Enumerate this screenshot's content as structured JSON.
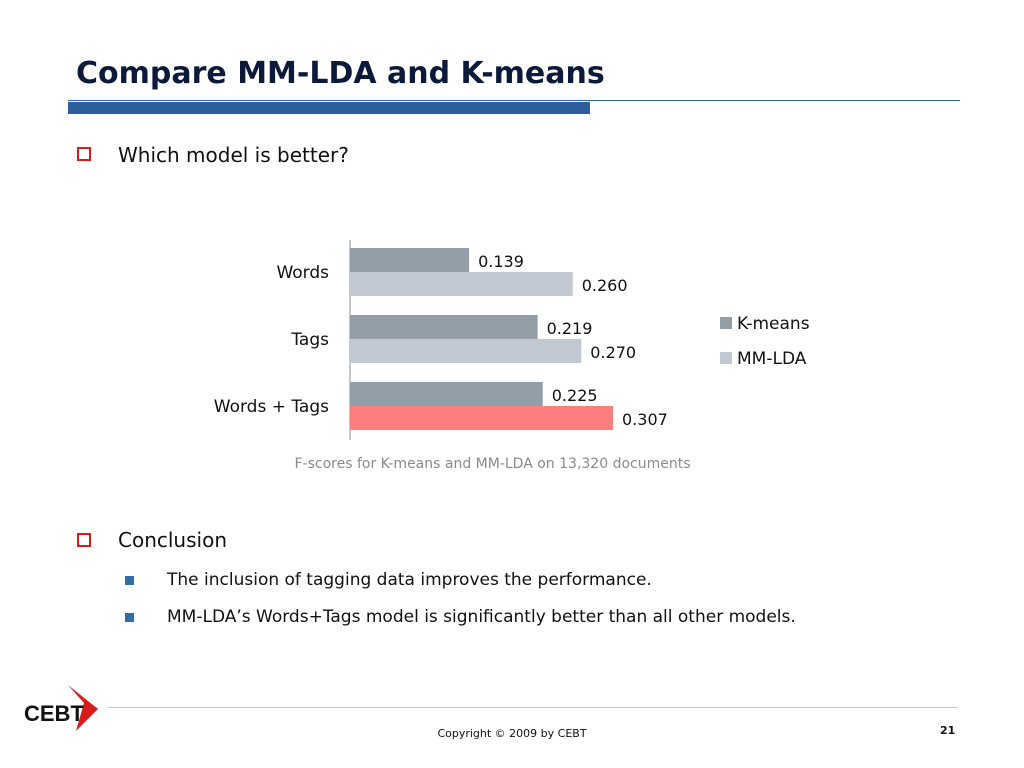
{
  "slide": {
    "title": "Compare MM-LDA and K-means",
    "bullets": [
      {
        "text": "Which model is better?"
      },
      {
        "text": "Conclusion",
        "sub": [
          "The inclusion of tagging data improves the performance.",
          "MM-LDA’s Words+Tags model is significantly better than all other models."
        ]
      }
    ],
    "chart_caption": "F-scores for K-means and MM-LDA on 13,320 documents",
    "logo_text": "CEBT",
    "copyright": "Copyright © 2009 by CEBT",
    "page_number": "21"
  },
  "colors": {
    "kmeans": "#949ea9",
    "mmlda": "#c2c8d2",
    "highlight": "#ff7f7f",
    "title_bar": "#2d5d9a",
    "bullet_red": "#d81c1c",
    "bullet_blue": "#2f6ea6"
  },
  "chart_data": {
    "type": "bar",
    "orientation": "horizontal",
    "categories": [
      "Words",
      "Tags",
      "Words + Tags"
    ],
    "series": [
      {
        "name": "K-means",
        "values": [
          0.139,
          0.219,
          0.225
        ]
      },
      {
        "name": "MM-LDA",
        "values": [
          0.26,
          0.27,
          0.307
        ]
      }
    ],
    "data_labels": [
      [
        "0.139",
        "0.219",
        "0.225"
      ],
      [
        "0.260",
        "0.270",
        "0.307"
      ]
    ],
    "highlighted": {
      "series": 1,
      "category": 2
    },
    "xlim": [
      0,
      0.35
    ],
    "grid": false,
    "legend_position": "right"
  }
}
